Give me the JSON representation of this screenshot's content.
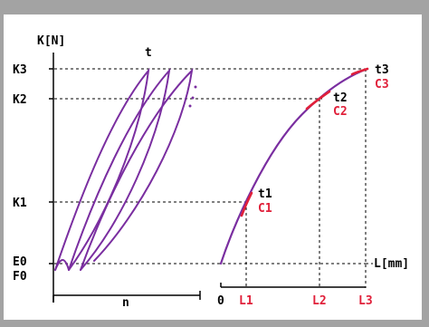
{
  "colors": {
    "background": "#ffffff",
    "frame": "#a3a3a3",
    "curve": "#7a2ea0",
    "highlight": "#e0203a",
    "axis": "#000000",
    "text": "#000000"
  },
  "left_axis": {
    "y_label": "K[N]",
    "ticks": [
      "K3",
      "K2",
      "K1",
      "E0",
      "F0"
    ],
    "x_label": "n",
    "curve_label": "t"
  },
  "right_axis": {
    "x_label": "L[mm]",
    "origin_label": "0",
    "ticks": [
      "L1",
      "L2",
      "L3"
    ],
    "points": [
      {
        "t": "t1",
        "c": "C1"
      },
      {
        "t": "t2",
        "c": "C2"
      },
      {
        "t": "t3",
        "c": "C3"
      }
    ]
  }
}
